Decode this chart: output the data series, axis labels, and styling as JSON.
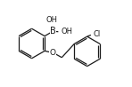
{
  "bg_color": "#ffffff",
  "line_color": "#1a1a1a",
  "line_width": 0.9,
  "font_size": 6.0,
  "text_color": "#1a1a1a",
  "figsize": [
    1.48,
    0.98
  ],
  "dpi": 100,
  "xlim": [
    0,
    14.8
  ],
  "ylim": [
    0,
    9.8
  ]
}
